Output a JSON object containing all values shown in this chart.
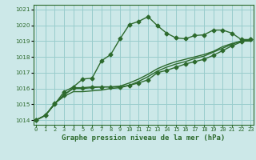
{
  "title": "Graphe pression niveau de la mer (hPa)",
  "x": [
    0,
    1,
    2,
    3,
    4,
    5,
    6,
    7,
    8,
    9,
    10,
    11,
    12,
    13,
    14,
    15,
    16,
    17,
    18,
    19,
    20,
    21,
    22,
    23
  ],
  "line1": [
    1014.0,
    1014.3,
    1015.0,
    1015.8,
    1016.1,
    1016.6,
    1016.65,
    1017.75,
    1018.15,
    1019.15,
    1020.05,
    1020.25,
    1020.55,
    1019.98,
    1019.5,
    1019.2,
    1019.15,
    1019.35,
    1019.4,
    1019.7,
    1019.7,
    1019.5,
    1019.1,
    1019.1
  ],
  "line2": [
    1014.0,
    1014.3,
    1015.05,
    1015.6,
    1016.05,
    1016.05,
    1016.1,
    1016.1,
    1016.1,
    1016.1,
    1016.2,
    1016.35,
    1016.55,
    1017.0,
    1017.15,
    1017.35,
    1017.55,
    1017.7,
    1017.85,
    1018.1,
    1018.4,
    1018.7,
    1018.95,
    1019.1
  ],
  "line3": [
    1014.0,
    1014.3,
    1015.05,
    1015.6,
    1016.0,
    1016.0,
    1016.05,
    1016.1,
    1016.1,
    1016.15,
    1016.35,
    1016.6,
    1016.9,
    1017.25,
    1017.5,
    1017.7,
    1017.85,
    1018.0,
    1018.15,
    1018.35,
    1018.65,
    1018.85,
    1019.0,
    1019.1
  ],
  "line4": [
    1014.0,
    1014.3,
    1015.05,
    1015.5,
    1015.8,
    1015.8,
    1015.85,
    1015.9,
    1016.0,
    1016.05,
    1016.2,
    1016.45,
    1016.75,
    1017.1,
    1017.35,
    1017.55,
    1017.7,
    1017.9,
    1018.05,
    1018.3,
    1018.55,
    1018.8,
    1019.0,
    1019.0
  ],
  "line_color": "#2d6a2d",
  "bg_color": "#cce8e8",
  "grid_color": "#99cccc",
  "ylim": [
    1013.7,
    1021.3
  ],
  "xlim": [
    -0.3,
    23.3
  ],
  "yticks": [
    1014,
    1015,
    1016,
    1017,
    1018,
    1019,
    1020,
    1021
  ],
  "xtick_labels": [
    "0",
    "1",
    "2",
    "3",
    "4",
    "5",
    "6",
    "7",
    "8",
    "9",
    "10",
    "11",
    "12",
    "13",
    "14",
    "15",
    "16",
    "17",
    "18",
    "19",
    "20",
    "21",
    "22",
    "23"
  ],
  "marker": "D",
  "markersize": 2.5,
  "linewidth": 1.0
}
